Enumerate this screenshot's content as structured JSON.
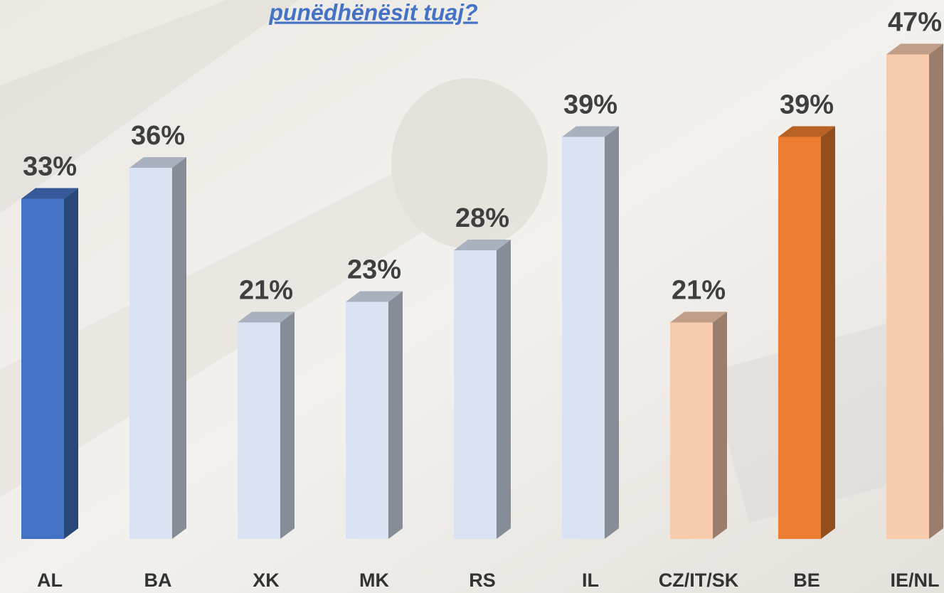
{
  "chart_data": {
    "type": "bar3d",
    "title": "punëdhënësit tuaj?",
    "categories": [
      "AL",
      "BA",
      "XK",
      "MK",
      "RS",
      "IL",
      "CZ/IT/SK",
      "BE",
      "IE/NL"
    ],
    "values": [
      33,
      36,
      21,
      23,
      28,
      39,
      21,
      39,
      47
    ],
    "value_labels": [
      "33%",
      "36%",
      "21%",
      "23%",
      "28%",
      "39%",
      "21%",
      "39%",
      "47%"
    ],
    "colors": [
      "#4472c4",
      "#dae3f3",
      "#dae3f3",
      "#dae3f3",
      "#dae3f3",
      "#dae3f3",
      "#f8cbad",
      "#ed7d31",
      "#f8cbad"
    ],
    "ylim": [
      0,
      50
    ]
  }
}
